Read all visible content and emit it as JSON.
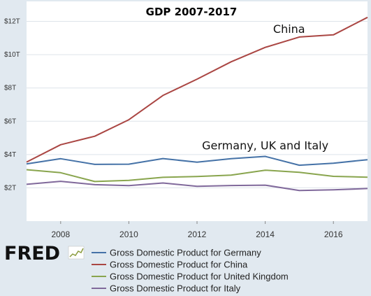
{
  "chart_data": {
    "type": "line",
    "title": "GDP 2007-2017",
    "xlabel": "",
    "ylabel": "",
    "x": [
      2007,
      2008,
      2009,
      2010,
      2011,
      2012,
      2013,
      2014,
      2015,
      2016,
      2017
    ],
    "xlim": [
      2007,
      2017
    ],
    "ylim": [
      0,
      13.2
    ],
    "x_ticks": [
      "2008",
      "2010",
      "2012",
      "2014",
      "2016"
    ],
    "y_ticks": [
      "$2T",
      "$4T",
      "$6T",
      "$8T",
      "$10T",
      "$12T"
    ],
    "y_tick_values": [
      2,
      4,
      6,
      8,
      10,
      12
    ],
    "grid": "horizontal",
    "legend_position": "bottom",
    "series": [
      {
        "name": "Gross Domestic Product for Germany",
        "color": "#4572a7",
        "values": [
          3.44,
          3.75,
          3.41,
          3.42,
          3.76,
          3.54,
          3.75,
          3.89,
          3.36,
          3.48,
          3.69
        ]
      },
      {
        "name": "Gross Domestic Product for China",
        "color": "#aa4643",
        "values": [
          3.55,
          4.59,
          5.1,
          6.09,
          7.55,
          8.53,
          9.57,
          10.44,
          11.06,
          11.19,
          12.24
        ]
      },
      {
        "name": "Gross Domestic Product for United Kingdom",
        "color": "#89a54e",
        "values": [
          3.09,
          2.91,
          2.38,
          2.45,
          2.63,
          2.68,
          2.76,
          3.06,
          2.93,
          2.69,
          2.64
        ]
      },
      {
        "name": "Gross Domestic Product for Italy",
        "color": "#80699b",
        "values": [
          2.21,
          2.39,
          2.19,
          2.13,
          2.29,
          2.09,
          2.14,
          2.16,
          1.84,
          1.88,
          1.96
        ]
      }
    ],
    "annotations": [
      {
        "text": "China",
        "x": 2014.7,
        "y": 11.3
      },
      {
        "text": "Germany, UK and Italy",
        "x": 2014,
        "y": 4.3
      }
    ]
  },
  "branding": {
    "logo_text": "FRED",
    "logo_icon": "chart-trend-icon"
  }
}
